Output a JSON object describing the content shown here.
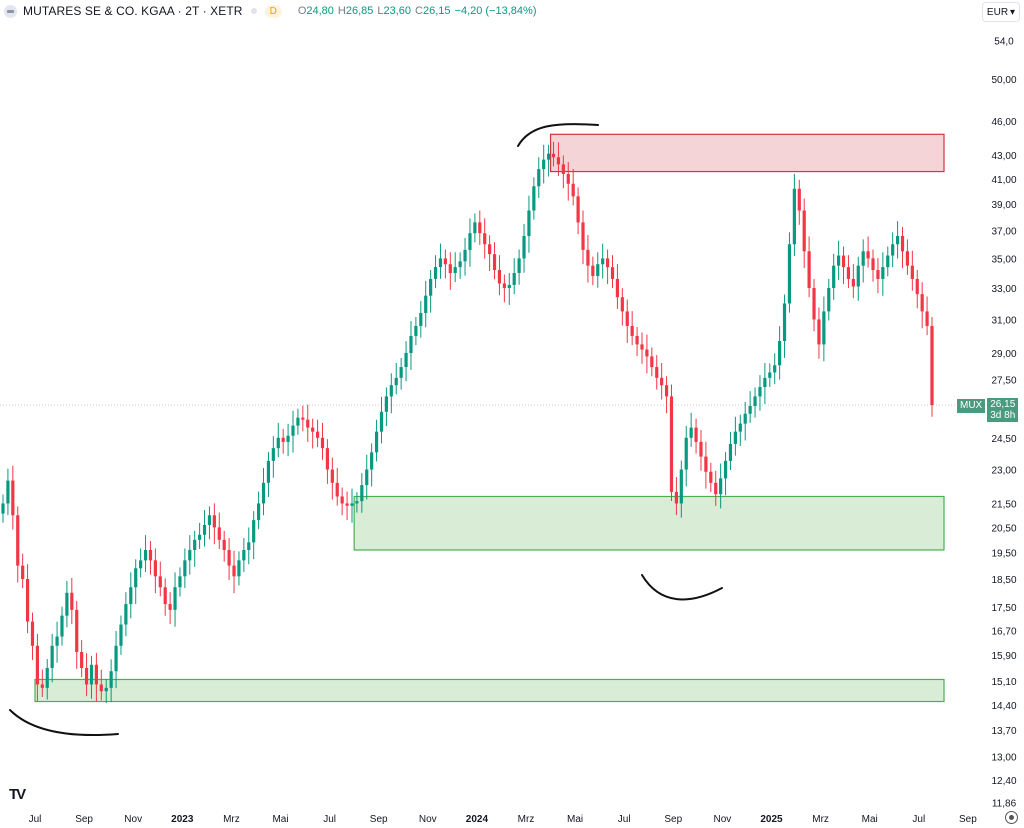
{
  "header": {
    "title": "MUTARES SE & CO. KGAA · 2T · XETR",
    "badge": "D",
    "open_label": "O",
    "open": "24,80",
    "high_label": "H",
    "high": "26,85",
    "low_label": "L",
    "low": "23,60",
    "close_label": "C",
    "close": "26,15",
    "change": "−4,20 (−13,84%)"
  },
  "currency": "EUR",
  "last_price": {
    "symbol": "MUX",
    "value": "26,15",
    "countdown": "3d 8h"
  },
  "colors": {
    "up": "#089981",
    "down": "#f23645",
    "grid_dot": "#c8cbd3",
    "zone_green": "#d8ecd6",
    "zone_red": "#f5d4d8"
  },
  "chart_data": {
    "type": "candlestick",
    "title": "MUTARES SE & CO. KGAA · 2T · XETR",
    "y_scale": "log",
    "y_ticks": [
      "54,0",
      "50,00",
      "46,00",
      "43,00",
      "41,00",
      "39,00",
      "37,00",
      "35,00",
      "33,00",
      "31,00",
      "29,00",
      "27,50",
      "24,50",
      "23,00",
      "21,50",
      "20,50",
      "19,50",
      "18,50",
      "17,50",
      "16,70",
      "15,90",
      "15,10",
      "14,40",
      "13,70",
      "13,00",
      "12,40",
      "11,86"
    ],
    "x_ticks": [
      "Jul",
      "Sep",
      "Nov",
      "2023",
      "Mrz",
      "Mai",
      "Jul",
      "Sep",
      "Nov",
      "2024",
      "Mrz",
      "Mai",
      "Jul",
      "Sep",
      "Nov",
      "2025",
      "Mrz",
      "Mai",
      "Jul",
      "Sep"
    ],
    "last": 26.15,
    "zones": [
      {
        "kind": "resistance",
        "from": 41.6,
        "to": 44.8,
        "start": "2024-04",
        "end": "2025-08"
      },
      {
        "kind": "support",
        "from": 19.6,
        "to": 21.8,
        "start": "2023-08",
        "end": "2025-08"
      },
      {
        "kind": "support",
        "from": 14.5,
        "to": 15.15,
        "start": "2022-07",
        "end": "2025-08"
      }
    ],
    "closes": [
      21.5,
      22.5,
      21,
      19,
      18.5,
      17,
      16.2,
      15,
      14.9,
      15.5,
      16.2,
      16.5,
      17.2,
      18,
      17.4,
      16,
      15.5,
      15,
      15.6,
      15,
      14.8,
      14.9,
      15.4,
      16.2,
      16.9,
      17.6,
      18.2,
      18.9,
      19.2,
      19.6,
      19.2,
      18.6,
      18.2,
      17.6,
      17.4,
      18.2,
      18.6,
      19.2,
      19.6,
      20,
      20.2,
      20.6,
      21,
      20.5,
      20,
      19.6,
      19,
      18.6,
      19.2,
      19.6,
      19.9,
      20.8,
      21.5,
      22.4,
      23.4,
      24,
      24.5,
      24.3,
      24.6,
      25.1,
      25.5,
      25.4,
      25,
      24.8,
      24.5,
      24,
      23,
      22.4,
      21.8,
      21.5,
      21.4,
      21.5,
      21.6,
      22.3,
      23,
      23.8,
      24.8,
      25.8,
      26.6,
      27.2,
      27.6,
      28.2,
      29,
      30,
      30.6,
      31.4,
      32.5,
      33.6,
      34.4,
      35,
      34.6,
      34,
      34.4,
      34.8,
      35.6,
      36.8,
      37.6,
      36.8,
      36,
      35.3,
      34.2,
      33.3,
      33,
      33.2,
      34,
      35,
      36.6,
      38.5,
      40.4,
      41.8,
      42.6,
      43.1,
      42.8,
      42.2,
      41.4,
      40.6,
      39.6,
      37.6,
      35.6,
      34.5,
      33.8,
      34.6,
      35,
      34.4,
      33.6,
      32.4,
      31.5,
      30.6,
      30,
      29.5,
      29.2,
      28.8,
      28.2,
      27.6,
      27.2,
      26.6,
      22,
      21.5,
      23,
      24.5,
      25,
      24.3,
      23.6,
      22.9,
      22.4,
      21.9,
      22.6,
      23.4,
      24.2,
      24.8,
      25.2,
      25.7,
      26.1,
      26.6,
      27.1,
      27.6,
      27.9,
      28.3,
      29.7,
      32,
      36,
      40.2,
      38.5,
      35.5,
      33,
      31,
      29.5,
      31.5,
      33,
      34.5,
      35.2,
      34.4,
      33.6,
      33.1,
      34.5,
      35.5,
      35,
      34.2,
      33.6,
      34.4,
      35.2,
      36,
      36.6,
      35.5,
      34.5,
      33.6,
      32.6,
      31.5,
      30.6,
      26.15
    ]
  }
}
